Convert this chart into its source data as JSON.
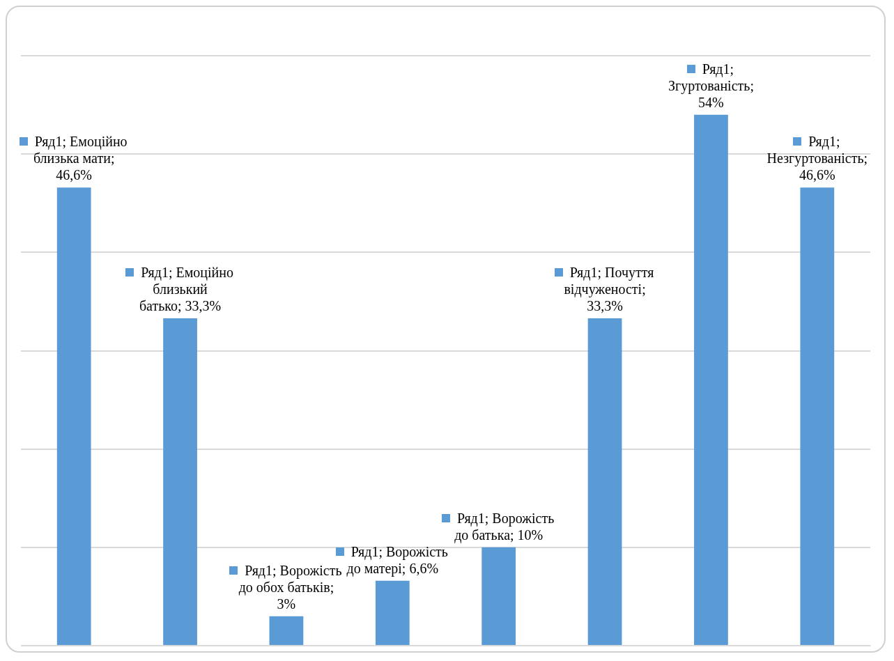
{
  "chart_data": {
    "type": "bar",
    "categories": [
      null,
      null,
      null,
      null,
      null,
      null,
      null,
      null
    ],
    "series": [
      {
        "color": "#5b9bd5",
        "values": [
          46.6,
          33.3,
          3,
          6.6,
          10,
          33.3,
          54,
          46.6
        ],
        "value_labels": [
          "Ряд1; Емоційно близька мати; 46,6%",
          "Ряд1; Емоційно близький батько; 33,3%",
          "Ряд1; Ворожість до обох батьків; 3%",
          "Ряд1; Ворожість до матері; 6,6%",
          "Ряд1; Ворожість до батька; 10%",
          "Ряд1; Почуття відчуженості; 33,3%",
          "Ряд1; Згуртованість; 54%",
          "Ряд1; Незгуртованість; 46,6%"
        ]
      }
    ],
    "ylim": [
      0,
      60
    ],
    "yticks": [
      0,
      10,
      20,
      30,
      40,
      50,
      60
    ],
    "grid": "y",
    "tick_labels": false,
    "legend": false
  }
}
